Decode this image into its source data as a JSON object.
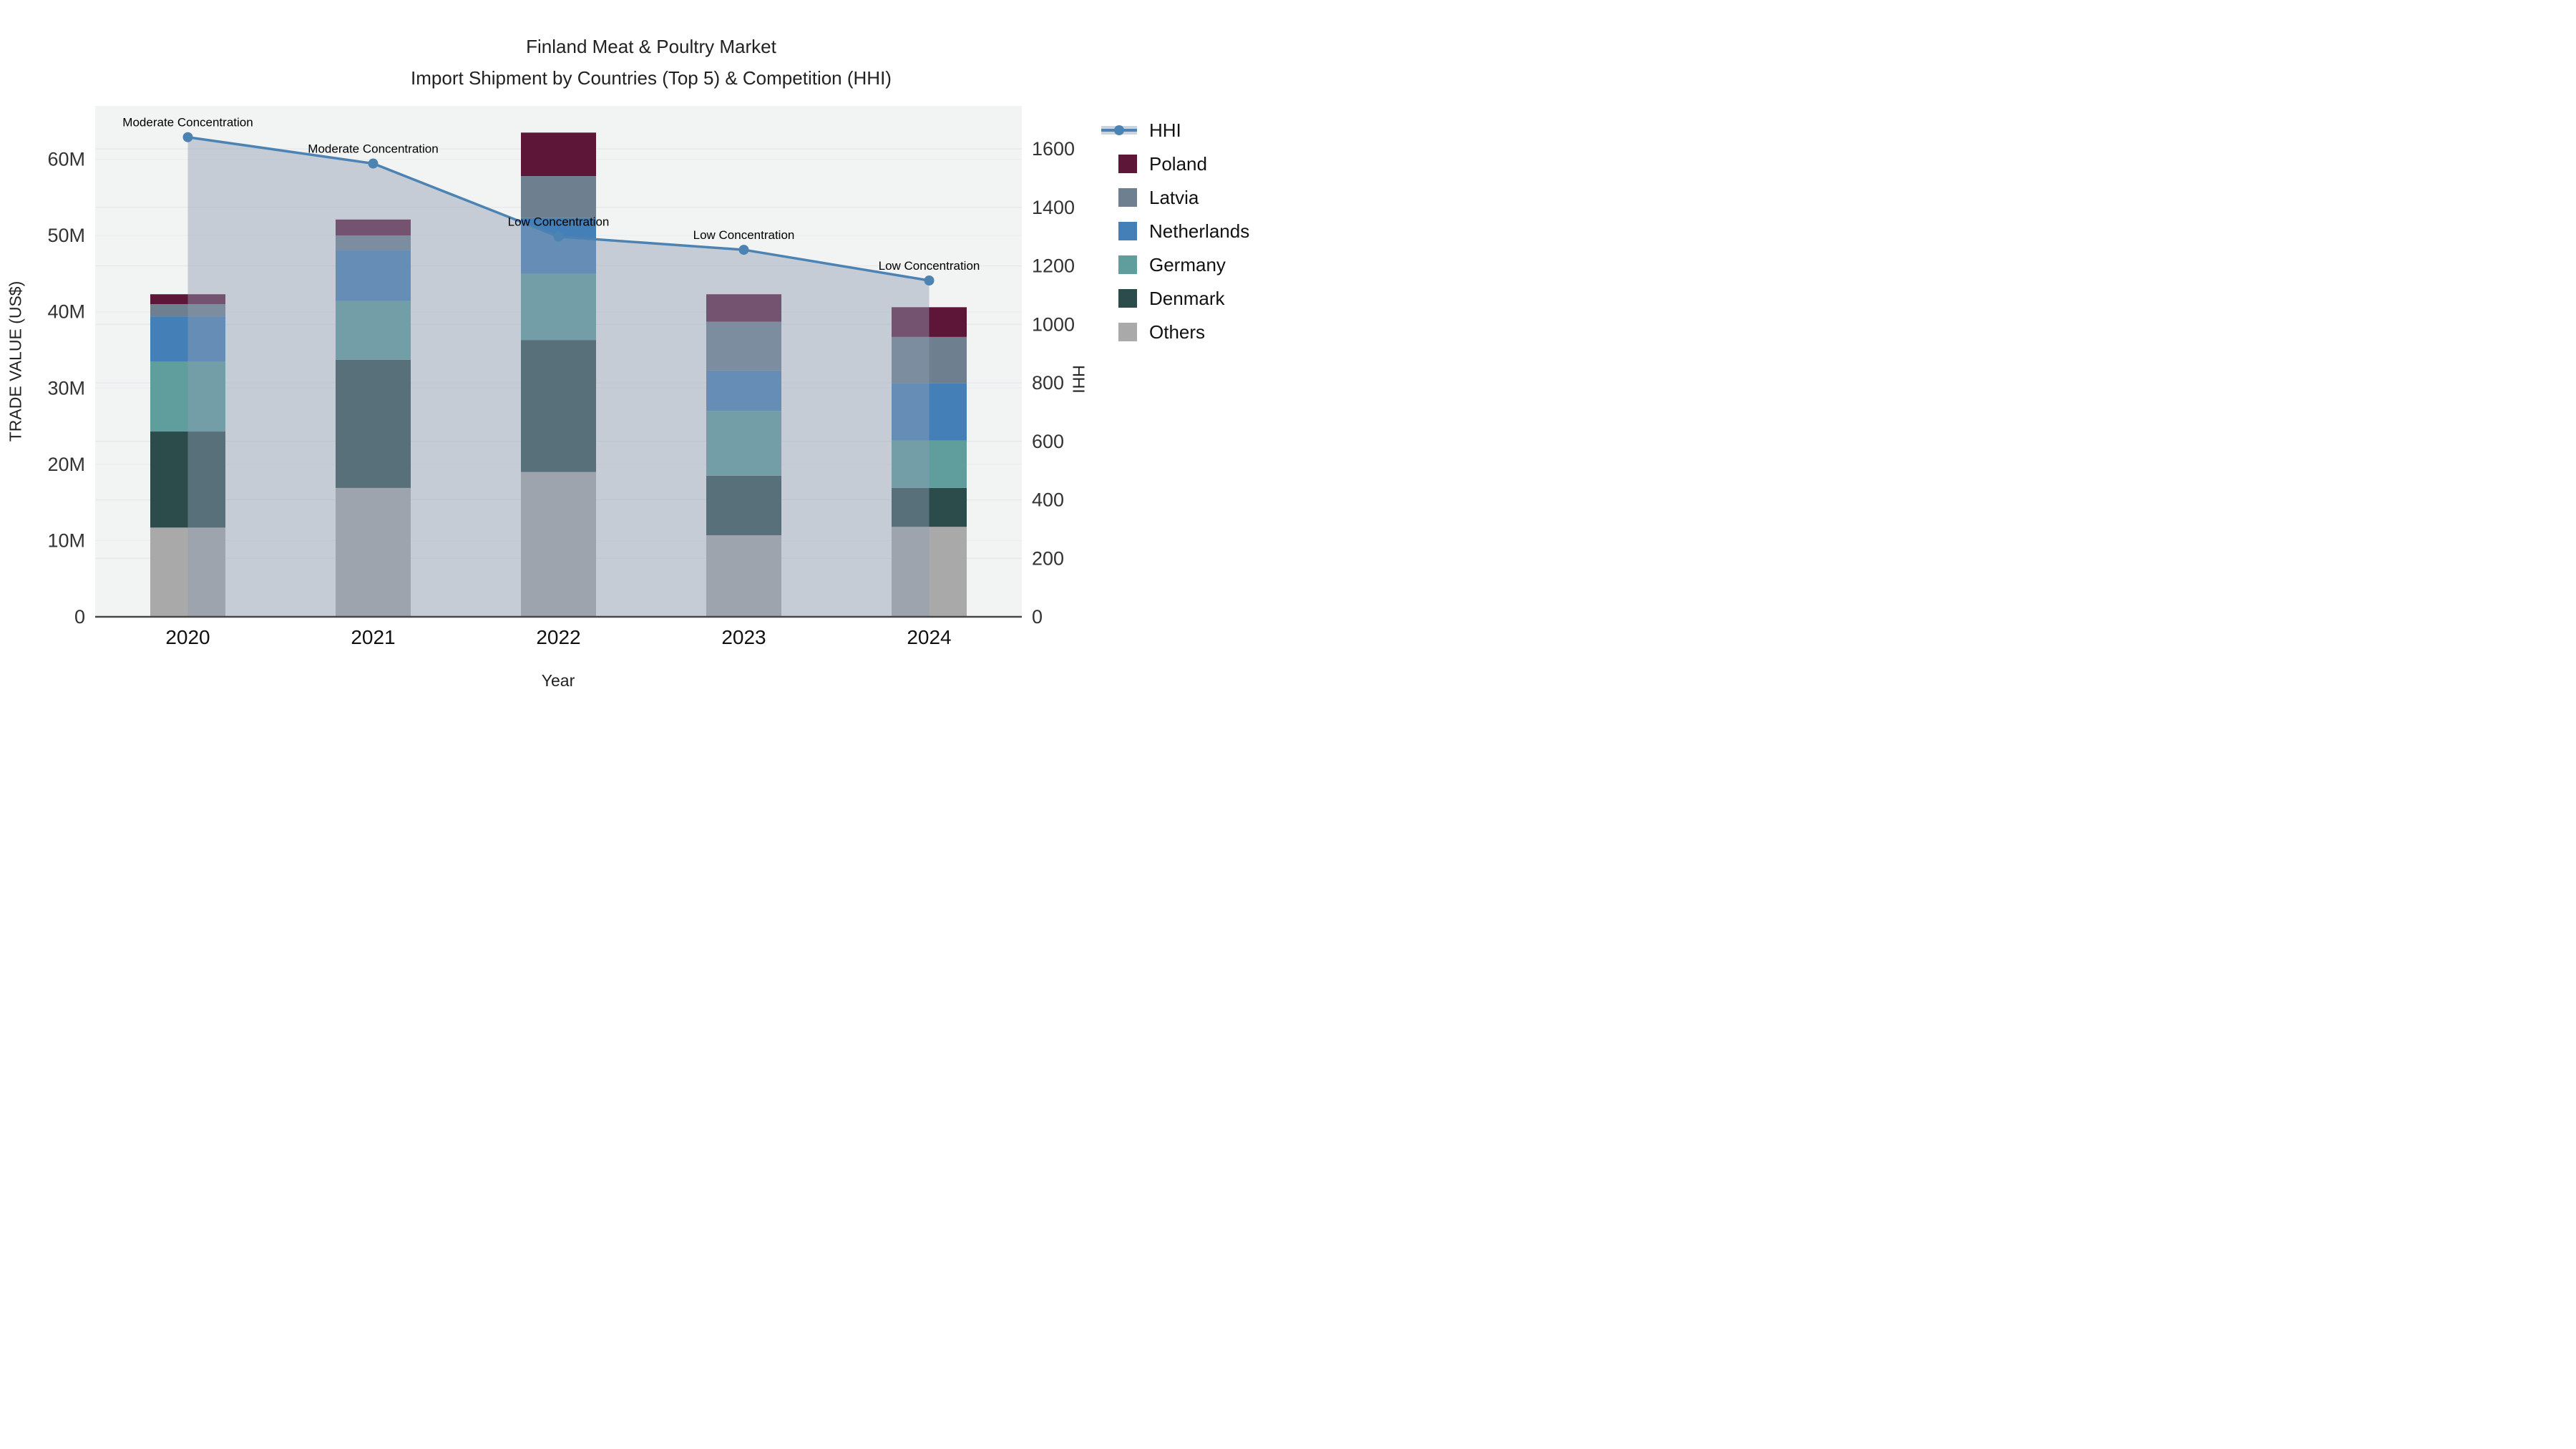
{
  "title": {
    "line1": "Finland Meat & Poultry Market",
    "line2": "Import Shipment by Countries (Top 5) & Competition (HHI)"
  },
  "chart_data": {
    "type": "bar",
    "subtype": "stacked-bars-with-line-overlay",
    "categories": [
      "2020",
      "2021",
      "2022",
      "2023",
      "2024"
    ],
    "bar_value_unit": "M US$ (trade value)",
    "series": [
      {
        "name": "Poland",
        "color": "#5e1638",
        "values": [
          1.3,
          2.1,
          5.7,
          3.6,
          3.9
        ]
      },
      {
        "name": "Latvia",
        "color": "#6e8090",
        "values": [
          1.6,
          1.9,
          5.5,
          6.4,
          6.1
        ]
      },
      {
        "name": "Netherlands",
        "color": "#4480b7",
        "values": [
          5.9,
          6.7,
          7.3,
          5.3,
          7.5
        ]
      },
      {
        "name": "Germany",
        "color": "#5f9e9d",
        "values": [
          9.2,
          7.7,
          8.7,
          8.5,
          6.2
        ]
      },
      {
        "name": "Denmark",
        "color": "#2c4b4b",
        "values": [
          12.6,
          16.8,
          17.3,
          7.8,
          5.1
        ]
      },
      {
        "name": "Others",
        "color": "#a9a9aa",
        "values": [
          11.7,
          16.9,
          19.0,
          10.7,
          11.8
        ]
      }
    ],
    "stack_bottom_to_top": [
      "Others",
      "Denmark",
      "Germany",
      "Netherlands",
      "Latvia",
      "Poland"
    ],
    "line": {
      "name": "HHI",
      "axis": "right",
      "color": "#4c83b2",
      "area_fill": "rgba(142,157,180,0.45)",
      "values": [
        1640,
        1550,
        1300,
        1255,
        1150
      ]
    },
    "annotations": [
      {
        "x": "2020",
        "text": "Moderate Concentration"
      },
      {
        "x": "2021",
        "text": "Moderate Concentration"
      },
      {
        "x": "2022",
        "text": "Low Concentration"
      },
      {
        "x": "2023",
        "text": "Low Concentration"
      },
      {
        "x": "2024",
        "text": "Low Concentration"
      }
    ],
    "x": {
      "title": "Year"
    },
    "y_left": {
      "title": "TRADE VALUE (US$)",
      "tick_values": [
        0,
        10,
        20,
        30,
        40,
        50,
        60
      ],
      "tick_labels": [
        "0",
        "10M",
        "20M",
        "30M",
        "40M",
        "50M",
        "60M"
      ],
      "max": 67
    },
    "y_right": {
      "title": "HHI",
      "tick_values": [
        0,
        200,
        400,
        600,
        800,
        1000,
        1200,
        1400,
        1600
      ],
      "tick_labels": [
        "0",
        "200",
        "400",
        "600",
        "800",
        "1000",
        "1200",
        "1400",
        "1600"
      ],
      "max": 1747
    },
    "plot_bg": "#f2f3f3",
    "grid_color": "#e4e6e8",
    "baseline_color": "#474747",
    "legend_position": "right"
  },
  "legend": {
    "items": [
      {
        "label": "HHI",
        "kind": "line",
        "color": "#4c83b2"
      },
      {
        "label": "Poland",
        "kind": "swatch",
        "color": "#5e1638"
      },
      {
        "label": "Latvia",
        "kind": "swatch",
        "color": "#6e8090"
      },
      {
        "label": "Netherlands",
        "kind": "swatch",
        "color": "#4480b7"
      },
      {
        "label": "Germany",
        "kind": "swatch",
        "color": "#5f9e9d"
      },
      {
        "label": "Denmark",
        "kind": "swatch",
        "color": "#2c4b4b"
      },
      {
        "label": "Others",
        "kind": "swatch",
        "color": "#a9a9aa"
      }
    ]
  }
}
